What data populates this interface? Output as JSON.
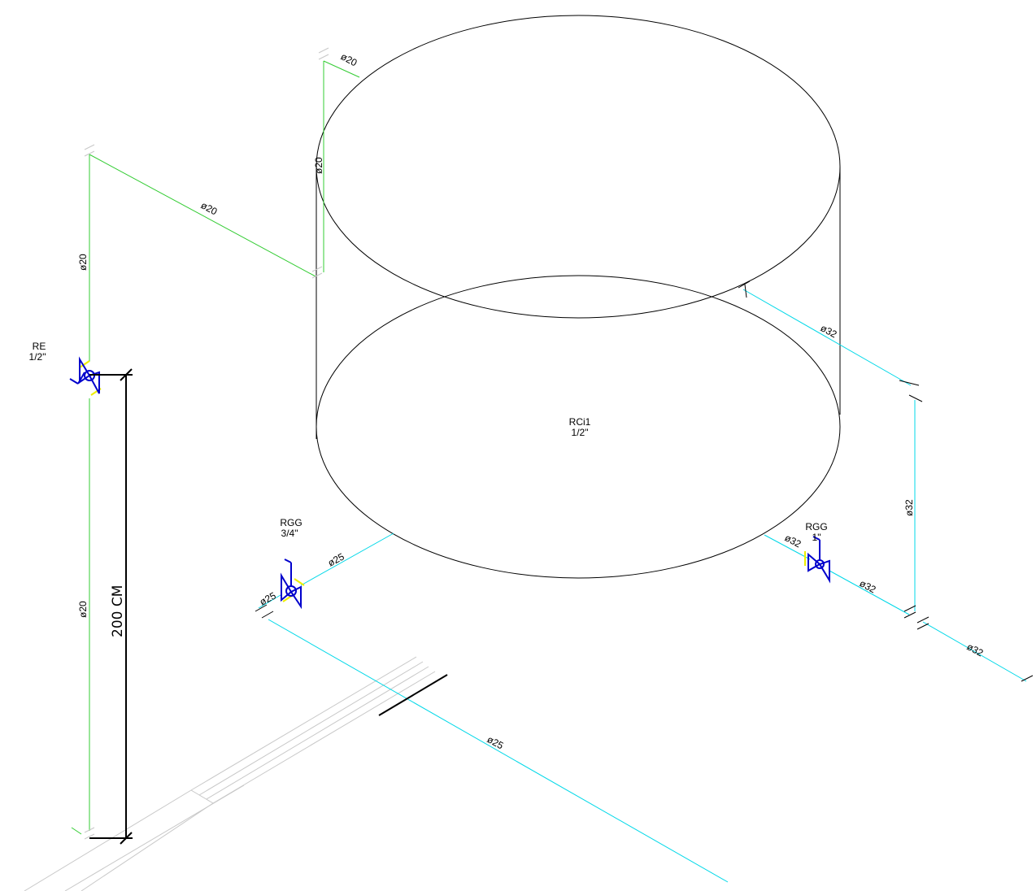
{
  "tank": {
    "name": "RCi1",
    "size": "1/2\""
  },
  "valves": {
    "re": {
      "name": "RE",
      "size": "1/2\""
    },
    "rgg_left": {
      "name": "RGG",
      "size": "3/4\""
    },
    "rgg_right": {
      "name": "RGG",
      "size": "1\""
    }
  },
  "dimension": {
    "label": "200 CM"
  },
  "pipe_labels": {
    "d20": "ø20",
    "d25": "ø25",
    "d32": "ø32"
  },
  "colors": {
    "cold_water_supply": "#33cc33",
    "distribution": "#00d8e8",
    "valve": "#0000cc",
    "outline": "#000000"
  }
}
